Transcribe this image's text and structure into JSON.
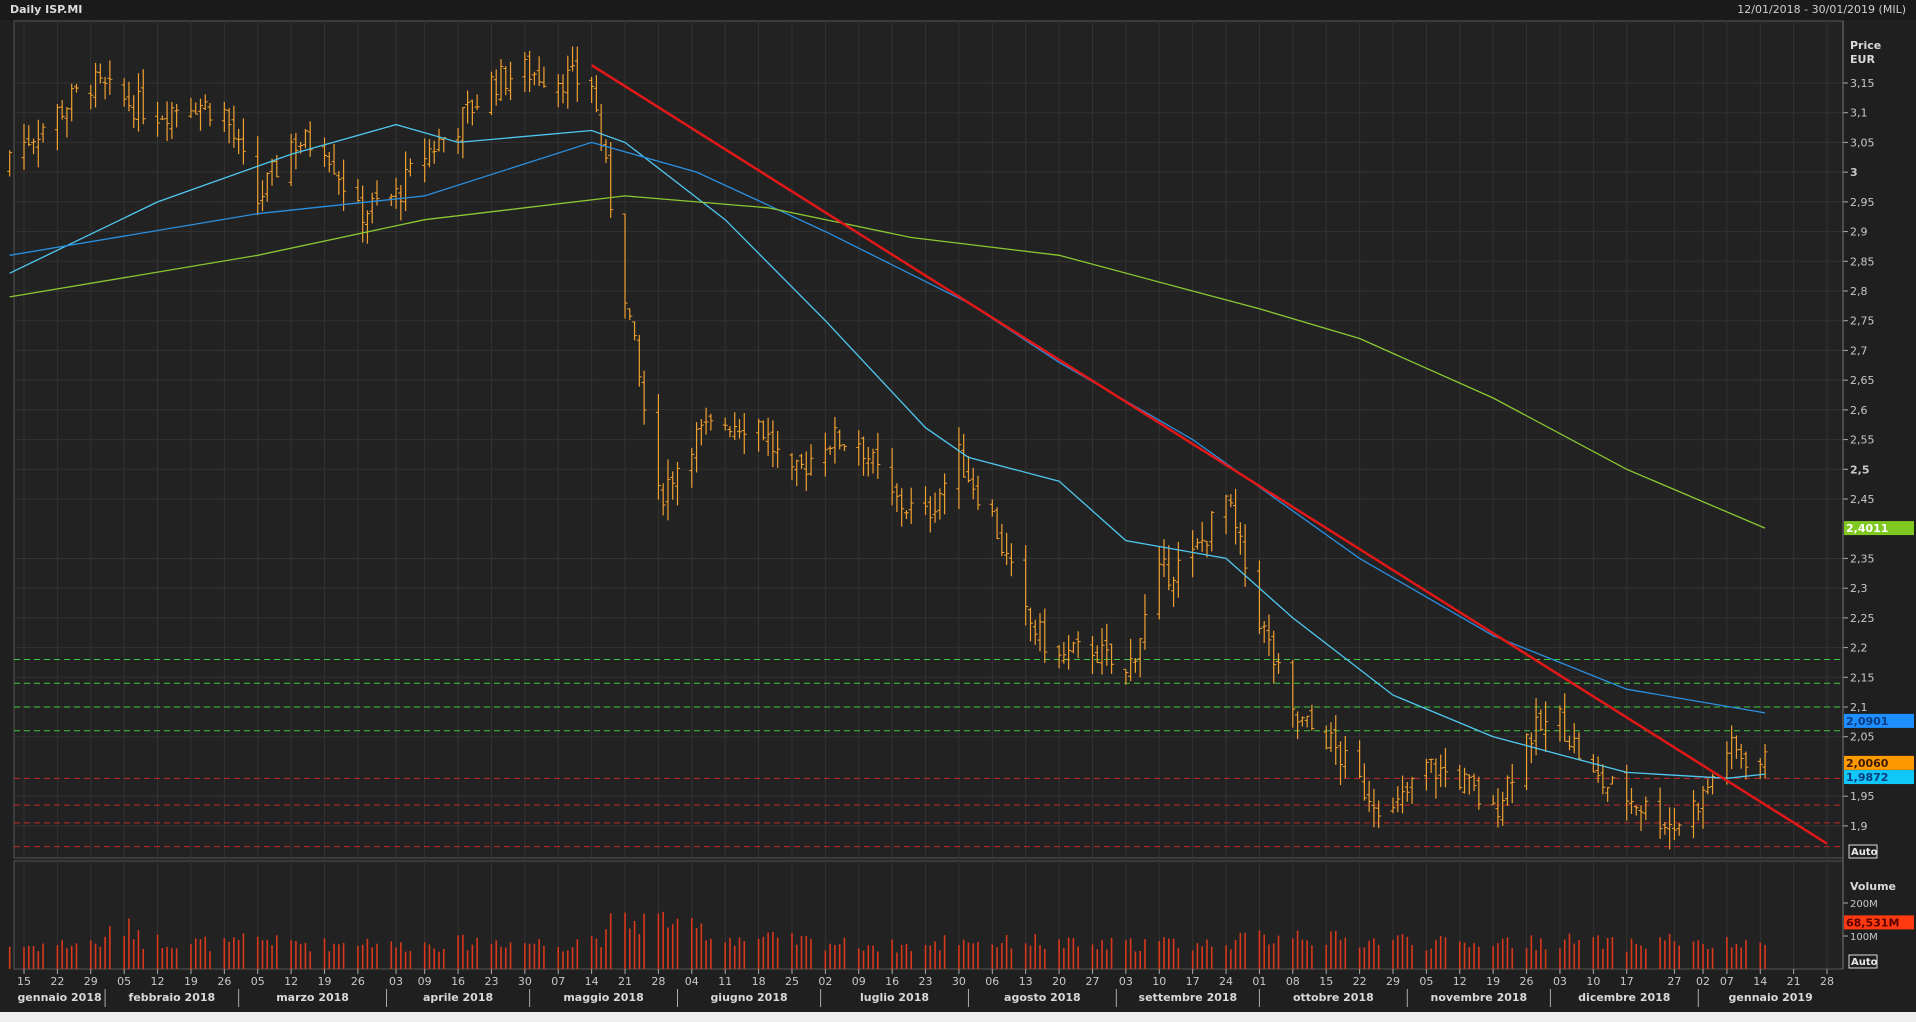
{
  "header": {
    "title": "Daily ISP.MI",
    "range": "12/01/2018 - 30/01/2019 (MIL)"
  },
  "colors": {
    "bars": "#f0a030",
    "ma_fast": "#4fc8f0",
    "ma_mid": "#2a8fe0",
    "ma_slow": "#8ac832",
    "trend": "#e01818",
    "support_green": "#3fc83f",
    "support_red": "#c02828",
    "volume": "#d8381c"
  },
  "chart_data": {
    "type": "ohlc-bar",
    "title": "Daily ISP.MI",
    "price_axis": {
      "label": "Price",
      "unit": "EUR",
      "ticks": [
        "3,15",
        "3,1",
        "3,05",
        "3",
        "2,95",
        "2,9",
        "2,85",
        "2,8",
        "2,75",
        "2,7",
        "2,65",
        "2,6",
        "2,55",
        "2,5",
        "2,45",
        "2,35",
        "2,3",
        "2,25",
        "2,2",
        "2,15",
        "2,1",
        "2,05",
        "1,95",
        "1,9"
      ],
      "tick_values": [
        3.15,
        3.1,
        3.05,
        3,
        2.95,
        2.9,
        2.85,
        2.8,
        2.75,
        2.7,
        2.65,
        2.6,
        2.55,
        2.5,
        2.45,
        2.35,
        2.3,
        2.25,
        2.2,
        2.15,
        2.1,
        2.05,
        1.95,
        1.9
      ],
      "scale_button": "Auto"
    },
    "volume_axis": {
      "label": "Volume",
      "ticks": [
        "200M",
        "100M"
      ],
      "tick_values": [
        200,
        100
      ],
      "scale_button": "Auto"
    },
    "weekly_close": [
      [
        "2018-01-15",
        3.05
      ],
      [
        "2018-01-22",
        3.1
      ],
      [
        "2018-01-29",
        3.15
      ],
      [
        "2018-02-05",
        3.12
      ],
      [
        "2018-02-12",
        3.1
      ],
      [
        "2018-02-19",
        3.12
      ],
      [
        "2018-02-26",
        3.1
      ],
      [
        "2018-03-05",
        2.95
      ],
      [
        "2018-03-12",
        3.05
      ],
      [
        "2018-03-19",
        3.05
      ],
      [
        "2018-03-26",
        2.93
      ],
      [
        "2018-04-03",
        2.96
      ],
      [
        "2018-04-09",
        3.03
      ],
      [
        "2018-04-16",
        3.08
      ],
      [
        "2018-04-23",
        3.15
      ],
      [
        "2018-04-30",
        3.17
      ],
      [
        "2018-05-07",
        3.16
      ],
      [
        "2018-05-14",
        3.15
      ],
      [
        "2018-05-21",
        2.8
      ],
      [
        "2018-05-28",
        2.45
      ],
      [
        "2018-06-04",
        2.55
      ],
      [
        "2018-06-11",
        2.58
      ],
      [
        "2018-06-18",
        2.58
      ],
      [
        "2018-06-25",
        2.48
      ],
      [
        "2018-07-02",
        2.55
      ],
      [
        "2018-07-09",
        2.55
      ],
      [
        "2018-07-16",
        2.45
      ],
      [
        "2018-07-23",
        2.42
      ],
      [
        "2018-07-30",
        2.52
      ],
      [
        "2018-08-06",
        2.42
      ],
      [
        "2018-08-13",
        2.25
      ],
      [
        "2018-08-20",
        2.18
      ],
      [
        "2018-08-27",
        2.2
      ],
      [
        "2018-09-03",
        2.15
      ],
      [
        "2018-09-10",
        2.32
      ],
      [
        "2018-09-17",
        2.35
      ],
      [
        "2018-09-24",
        2.45
      ],
      [
        "2018-10-01",
        2.25
      ],
      [
        "2018-10-08",
        2.08
      ],
      [
        "2018-10-15",
        2.05
      ],
      [
        "2018-10-22",
        1.97
      ],
      [
        "2018-10-29",
        1.92
      ],
      [
        "2018-11-05",
        2.0
      ],
      [
        "2018-11-12",
        1.98
      ],
      [
        "2018-11-19",
        1.92
      ],
      [
        "2018-11-26",
        2.05
      ],
      [
        "2018-12-03",
        2.08
      ],
      [
        "2018-12-10",
        1.98
      ],
      [
        "2018-12-17",
        1.95
      ],
      [
        "2018-12-27",
        1.9
      ],
      [
        "2019-01-02",
        1.95
      ],
      [
        "2019-01-07",
        2.03
      ],
      [
        "2019-01-14",
        2.006
      ]
    ],
    "weekly_volume_M": [
      70,
      75,
      80,
      120,
      85,
      80,
      75,
      90,
      80,
      75,
      85,
      70,
      75,
      80,
      85,
      80,
      75,
      95,
      140,
      150,
      120,
      95,
      90,
      85,
      80,
      75,
      70,
      70,
      90,
      80,
      85,
      75,
      70,
      75,
      80,
      75,
      85,
      95,
      110,
      90,
      85,
      90,
      80,
      75,
      85,
      80,
      85,
      80,
      75,
      90,
      70,
      75,
      68.531
    ],
    "moving_averages": [
      {
        "name": "ma_fast",
        "points": [
          [
            "2018-01-12",
            2.83
          ],
          [
            "2018-02-12",
            2.95
          ],
          [
            "2018-03-12",
            3.03
          ],
          [
            "2018-04-03",
            3.08
          ],
          [
            "2018-04-16",
            3.05
          ],
          [
            "2018-05-14",
            3.07
          ],
          [
            "2018-05-21",
            3.05
          ],
          [
            "2018-06-11",
            2.92
          ],
          [
            "2018-07-02",
            2.75
          ],
          [
            "2018-07-23",
            2.57
          ],
          [
            "2018-08-01",
            2.52
          ],
          [
            "2018-08-20",
            2.48
          ],
          [
            "2018-09-03",
            2.38
          ],
          [
            "2018-09-24",
            2.35
          ],
          [
            "2018-10-08",
            2.25
          ],
          [
            "2018-10-29",
            2.12
          ],
          [
            "2018-11-19",
            2.05
          ],
          [
            "2018-12-03",
            2.02
          ],
          [
            "2018-12-17",
            1.99
          ],
          [
            "2019-01-07",
            1.98
          ],
          [
            "2019-01-15",
            1.9872
          ]
        ]
      },
      {
        "name": "ma_mid",
        "points": [
          [
            "2018-01-12",
            2.86
          ],
          [
            "2018-03-05",
            2.93
          ],
          [
            "2018-04-09",
            2.96
          ],
          [
            "2018-05-14",
            3.05
          ],
          [
            "2018-06-05",
            3.0
          ],
          [
            "2018-07-02",
            2.9
          ],
          [
            "2018-08-01",
            2.78
          ],
          [
            "2018-08-20",
            2.68
          ],
          [
            "2018-09-17",
            2.55
          ],
          [
            "2018-10-01",
            2.47
          ],
          [
            "2018-10-22",
            2.35
          ],
          [
            "2018-11-19",
            2.22
          ],
          [
            "2018-12-17",
            2.13
          ],
          [
            "2019-01-15",
            2.0901
          ]
        ]
      },
      {
        "name": "ma_slow",
        "points": [
          [
            "2018-01-12",
            2.79
          ],
          [
            "2018-03-05",
            2.86
          ],
          [
            "2018-04-09",
            2.92
          ],
          [
            "2018-05-21",
            2.96
          ],
          [
            "2018-06-20",
            2.94
          ],
          [
            "2018-07-20",
            2.89
          ],
          [
            "2018-08-20",
            2.86
          ],
          [
            "2018-09-17",
            2.8
          ],
          [
            "2018-10-01",
            2.77
          ],
          [
            "2018-10-22",
            2.72
          ],
          [
            "2018-11-19",
            2.62
          ],
          [
            "2018-12-17",
            2.5
          ],
          [
            "2019-01-15",
            2.4011
          ]
        ]
      }
    ],
    "trendline": {
      "from": [
        "2018-05-14",
        3.18
      ],
      "to": [
        "2019-01-28",
        1.87
      ]
    },
    "horizontal_levels": {
      "green": [
        2.18,
        2.14,
        2.1,
        2.06
      ],
      "red": [
        1.98,
        1.935,
        1.905,
        1.865
      ]
    },
    "last_values": [
      {
        "label": "2,4011",
        "value": 2.4011,
        "color": "#7ec820",
        "text": "#ffffff"
      },
      {
        "label": "2,0901",
        "value": 2.0901,
        "color": "#1e8fff",
        "text": "#0a3a80"
      },
      {
        "label": "2,0060",
        "value": 2.006,
        "color": "#ff9900",
        "text": "#3a1a00"
      },
      {
        "label": "1,9872",
        "value": 1.9872,
        "color": "#10c8f8",
        "text": "#0a3a80"
      }
    ],
    "last_volume": {
      "label": "68,531M",
      "value": 68.531,
      "color": "#ff3a10"
    },
    "x_ticks": [
      [
        "2018-01-15",
        "15"
      ],
      [
        "2018-01-22",
        "22"
      ],
      [
        "2018-01-29",
        "29"
      ],
      [
        "2018-02-05",
        "05"
      ],
      [
        "2018-02-12",
        "12"
      ],
      [
        "2018-02-19",
        "19"
      ],
      [
        "2018-02-26",
        "26"
      ],
      [
        "2018-03-05",
        "05"
      ],
      [
        "2018-03-12",
        "12"
      ],
      [
        "2018-03-19",
        "19"
      ],
      [
        "2018-03-26",
        "26"
      ],
      [
        "2018-04-03",
        "03"
      ],
      [
        "2018-04-09",
        "09"
      ],
      [
        "2018-04-16",
        "16"
      ],
      [
        "2018-04-23",
        "23"
      ],
      [
        "2018-04-30",
        "30"
      ],
      [
        "2018-05-07",
        "07"
      ],
      [
        "2018-05-14",
        "14"
      ],
      [
        "2018-05-21",
        "21"
      ],
      [
        "2018-05-28",
        "28"
      ],
      [
        "2018-06-04",
        "04"
      ],
      [
        "2018-06-11",
        "11"
      ],
      [
        "2018-06-18",
        "18"
      ],
      [
        "2018-06-25",
        "25"
      ],
      [
        "2018-07-02",
        "02"
      ],
      [
        "2018-07-09",
        "09"
      ],
      [
        "2018-07-16",
        "16"
      ],
      [
        "2018-07-23",
        "23"
      ],
      [
        "2018-07-30",
        "30"
      ],
      [
        "2018-08-06",
        "06"
      ],
      [
        "2018-08-13",
        "13"
      ],
      [
        "2018-08-20",
        "20"
      ],
      [
        "2018-08-27",
        "27"
      ],
      [
        "2018-09-03",
        "03"
      ],
      [
        "2018-09-10",
        "10"
      ],
      [
        "2018-09-17",
        "17"
      ],
      [
        "2018-09-24",
        "24"
      ],
      [
        "2018-10-01",
        "01"
      ],
      [
        "2018-10-08",
        "08"
      ],
      [
        "2018-10-15",
        "15"
      ],
      [
        "2018-10-22",
        "22"
      ],
      [
        "2018-10-29",
        "29"
      ],
      [
        "2018-11-05",
        "05"
      ],
      [
        "2018-11-12",
        "12"
      ],
      [
        "2018-11-19",
        "19"
      ],
      [
        "2018-11-26",
        "26"
      ],
      [
        "2018-12-03",
        "03"
      ],
      [
        "2018-12-10",
        "10"
      ],
      [
        "2018-12-17",
        "17"
      ],
      [
        "2018-12-27",
        "27"
      ],
      [
        "2019-01-02",
        "02"
      ],
      [
        "2019-01-07",
        "07"
      ],
      [
        "2019-01-14",
        "14"
      ],
      [
        "2019-01-21",
        "21"
      ],
      [
        "2019-01-28",
        "28"
      ]
    ],
    "months": [
      [
        "2018-01-01",
        "gennaio 2018"
      ],
      [
        "2018-02-01",
        "febbraio 2018"
      ],
      [
        "2018-03-01",
        "marzo 2018"
      ],
      [
        "2018-04-01",
        "aprile 2018"
      ],
      [
        "2018-05-01",
        "maggio 2018"
      ],
      [
        "2018-06-01",
        "giugno 2018"
      ],
      [
        "2018-07-01",
        "luglio 2018"
      ],
      [
        "2018-08-01",
        "agosto 2018"
      ],
      [
        "2018-09-01",
        "settembre 2018"
      ],
      [
        "2018-10-01",
        "ottobre 2018"
      ],
      [
        "2018-11-01",
        "novembre 2018"
      ],
      [
        "2018-12-01",
        "dicembre 2018"
      ],
      [
        "2019-01-01",
        "gennaio 2019"
      ]
    ]
  }
}
